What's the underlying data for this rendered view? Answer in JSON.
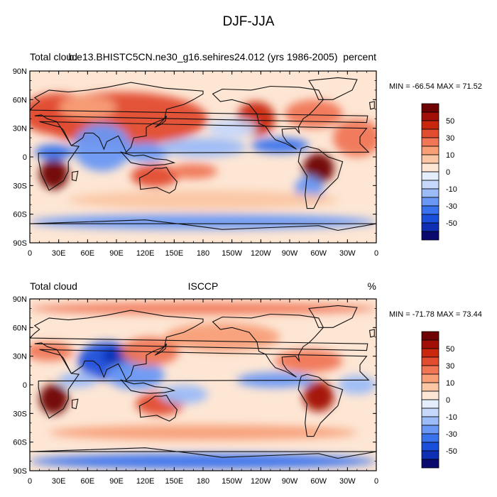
{
  "title": "DJF-JJA",
  "chart_data": [
    {
      "type": "heatmap",
      "left_label": "Total cloud",
      "center_label": "b.e13.BHISTC5CN.ne30_g16.sehires24.012 (yrs 1986-2005)",
      "right_label": "percent",
      "stats": "MIN = -66.54  MAX =  71.52",
      "x_ticks": [
        "0",
        "30E",
        "60E",
        "90E",
        "120E",
        "150E",
        "180",
        "150W",
        "120W",
        "90W",
        "60W",
        "30W",
        "0"
      ],
      "y_ticks": [
        "90N",
        "60N",
        "30N",
        "0",
        "30S",
        "60S",
        "90S"
      ],
      "xlim": [
        0,
        360
      ],
      "ylim": [
        -90,
        90
      ],
      "colorbar_labels": [
        "50",
        "30",
        "10",
        "0",
        "-10",
        "-30",
        "-50"
      ],
      "regions": [
        {
          "lon": 95,
          "lat": 40,
          "w": 90,
          "h": 28,
          "v": 34
        },
        {
          "lon": 30,
          "lat": 45,
          "w": 40,
          "h": 22,
          "v": 30
        },
        {
          "lon": 60,
          "lat": 52,
          "w": 30,
          "h": 12,
          "v": 15
        },
        {
          "lon": 25,
          "lat": -18,
          "w": 15,
          "h": 16,
          "v": 62
        },
        {
          "lon": 25,
          "lat": 5,
          "w": 20,
          "h": 8,
          "v": -35
        },
        {
          "lon": 75,
          "lat": 10,
          "w": 30,
          "h": 25,
          "v": -25
        },
        {
          "lon": 130,
          "lat": -20,
          "w": 25,
          "h": 12,
          "v": 35
        },
        {
          "lon": 170,
          "lat": -15,
          "w": 25,
          "h": 8,
          "v": 22
        },
        {
          "lon": 120,
          "lat": 5,
          "w": 25,
          "h": 10,
          "v": -30
        },
        {
          "lon": 180,
          "lat": 10,
          "w": 45,
          "h": 10,
          "v": -18
        },
        {
          "lon": 235,
          "lat": 40,
          "w": 20,
          "h": 18,
          "v": 40
        },
        {
          "lon": 295,
          "lat": 45,
          "w": 30,
          "h": 15,
          "v": 25
        },
        {
          "lon": 300,
          "lat": -12,
          "w": 16,
          "h": 16,
          "v": 60
        },
        {
          "lon": 260,
          "lat": 12,
          "w": 30,
          "h": 8,
          "v": -40
        },
        {
          "lon": 290,
          "lat": -35,
          "w": 15,
          "h": 15,
          "v": -30
        },
        {
          "lon": 180,
          "lat": -45,
          "w": 140,
          "h": 10,
          "v": 6
        },
        {
          "lon": 180,
          "lat": -68,
          "w": 180,
          "h": 8,
          "v": -25
        },
        {
          "lon": 340,
          "lat": 20,
          "w": 25,
          "h": 20,
          "v": 20
        },
        {
          "lon": 210,
          "lat": 30,
          "w": 25,
          "h": 10,
          "v": -10
        }
      ]
    },
    {
      "type": "heatmap",
      "left_label": "Total cloud",
      "center_label": "ISCCP",
      "right_label": "%",
      "stats": "MIN = -71.78  MAX =  73.44",
      "x_ticks": [
        "0",
        "30E",
        "60E",
        "90E",
        "120E",
        "150E",
        "180",
        "150W",
        "120W",
        "90W",
        "60W",
        "30W",
        "0"
      ],
      "y_ticks": [
        "90N",
        "60N",
        "30N",
        "0",
        "30S",
        "60S",
        "90S"
      ],
      "xlim": [
        0,
        360
      ],
      "ylim": [
        -90,
        90
      ],
      "colorbar_labels": [
        "50",
        "30",
        "10",
        "0",
        "-10",
        "-30",
        "-50"
      ],
      "regions": [
        {
          "lon": 80,
          "lat": 25,
          "w": 30,
          "h": 20,
          "v": -45
        },
        {
          "lon": 95,
          "lat": 30,
          "w": 20,
          "h": 10,
          "v": -55
        },
        {
          "lon": 110,
          "lat": 10,
          "w": 30,
          "h": 15,
          "v": -30
        },
        {
          "lon": 25,
          "lat": -15,
          "w": 15,
          "h": 16,
          "v": 62
        },
        {
          "lon": 20,
          "lat": 35,
          "w": 25,
          "h": 10,
          "v": 20
        },
        {
          "lon": 135,
          "lat": -20,
          "w": 25,
          "h": 12,
          "v": 35
        },
        {
          "lon": 125,
          "lat": 35,
          "w": 30,
          "h": 15,
          "v": 20
        },
        {
          "lon": 300,
          "lat": -12,
          "w": 16,
          "h": 16,
          "v": 55
        },
        {
          "lon": 290,
          "lat": 25,
          "w": 35,
          "h": 12,
          "v": 22
        },
        {
          "lon": 255,
          "lat": 5,
          "w": 40,
          "h": 8,
          "v": -28
        },
        {
          "lon": 200,
          "lat": 50,
          "w": 60,
          "h": 15,
          "v": 10
        },
        {
          "lon": 180,
          "lat": -80,
          "w": 180,
          "h": 8,
          "v": -40
        },
        {
          "lon": 180,
          "lat": -50,
          "w": 160,
          "h": 8,
          "v": 15
        },
        {
          "lon": 180,
          "lat": 80,
          "w": 180,
          "h": 6,
          "v": 20
        },
        {
          "lon": 160,
          "lat": -10,
          "w": 25,
          "h": 10,
          "v": -20
        },
        {
          "lon": 340,
          "lat": 0,
          "w": 20,
          "h": 10,
          "v": -15
        },
        {
          "lon": 50,
          "lat": 5,
          "w": 20,
          "h": 8,
          "v": -20
        }
      ]
    }
  ]
}
